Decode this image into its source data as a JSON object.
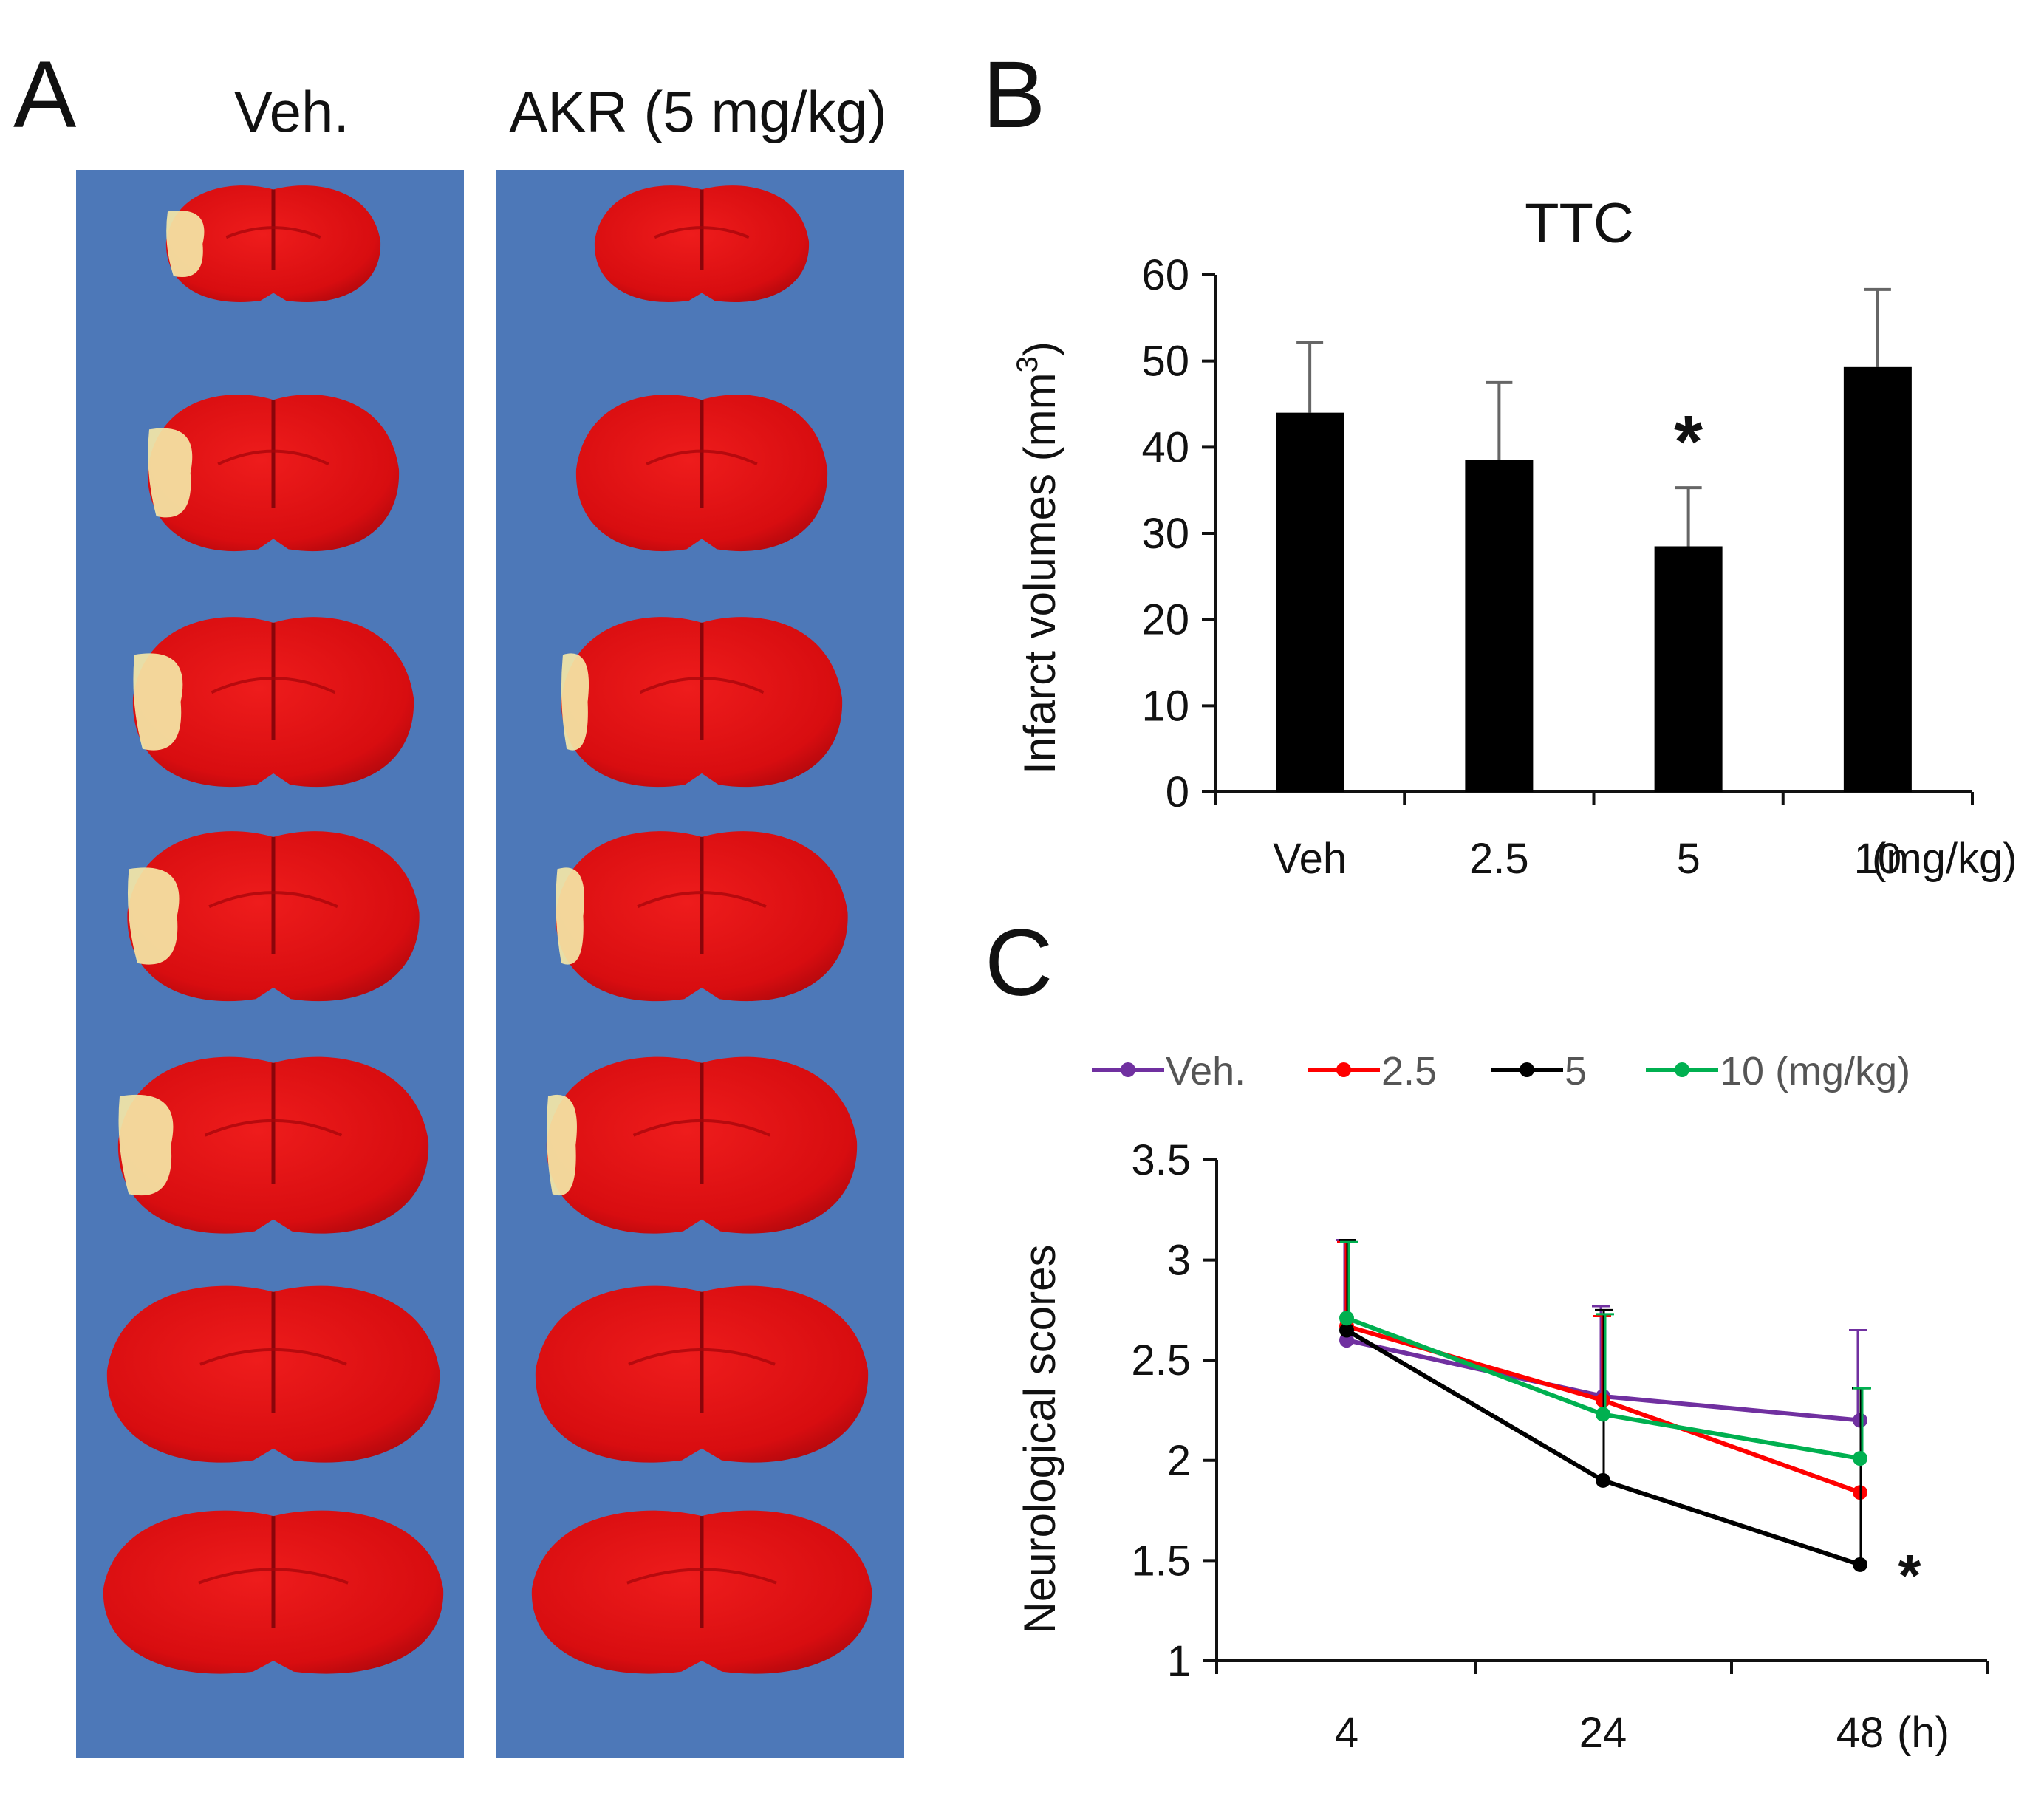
{
  "panels": {
    "a": {
      "letter": "A",
      "headers": [
        "Veh.",
        "AKR (5 mg/kg)"
      ],
      "slices_per_column": 7,
      "stain_color": "#e10f12",
      "background_color": "#4d78b8",
      "infarct_color": "#f4e7a6"
    },
    "b": {
      "letter": "B"
    },
    "c": {
      "letter": "C"
    }
  },
  "chart_data": [
    {
      "type": "bar",
      "title": "TTC",
      "categories": [
        "Veh",
        "2.5",
        "5",
        "10"
      ],
      "x_unit_label": "(mg/kg)",
      "values": [
        44,
        38.5,
        28.5,
        49.3
      ],
      "errors": [
        8.2,
        9,
        6.8,
        9
      ],
      "significance": [
        "",
        "",
        "*",
        ""
      ],
      "xlabel": "",
      "ylabel": "Infarct volumes (mm3)",
      "ylabel_main": "Infarct volumes (mm",
      "ylabel_sup": "3",
      "ylabel_close": ")",
      "ylim": [
        0,
        60
      ],
      "yticks": [
        0,
        10,
        20,
        30,
        40,
        50,
        60
      ],
      "bar_color": "#000000"
    },
    {
      "type": "line",
      "categories": [
        "4",
        "24",
        "48"
      ],
      "x_unit_label": "(h)",
      "ylabel": "Neurological scores",
      "ylim": [
        1,
        3.5
      ],
      "yticks": [
        "1",
        "1.5",
        "2",
        "2.5",
        "3",
        "3.5"
      ],
      "legend_position": "top",
      "series": [
        {
          "name": "Veh.",
          "color": "#7030a0",
          "values": [
            2.6,
            2.32,
            2.2
          ],
          "errors": [
            0.5,
            0.45,
            0.45
          ]
        },
        {
          "name": "2.5",
          "color": "#ff0000",
          "values": [
            2.67,
            2.3,
            1.84
          ],
          "errors": [
            0.42,
            0.42,
            0.0
          ]
        },
        {
          "name": "5",
          "color": "#000000",
          "values": [
            2.65,
            1.9,
            1.48
          ],
          "errors": [
            0.45,
            0.85,
            0.88
          ]
        },
        {
          "name": "10 (mg/kg)",
          "color": "#00b050",
          "values": [
            2.71,
            2.23,
            2.01
          ],
          "errors": [
            0.38,
            0.5,
            0.35
          ]
        }
      ],
      "significance_label": "*"
    }
  ]
}
